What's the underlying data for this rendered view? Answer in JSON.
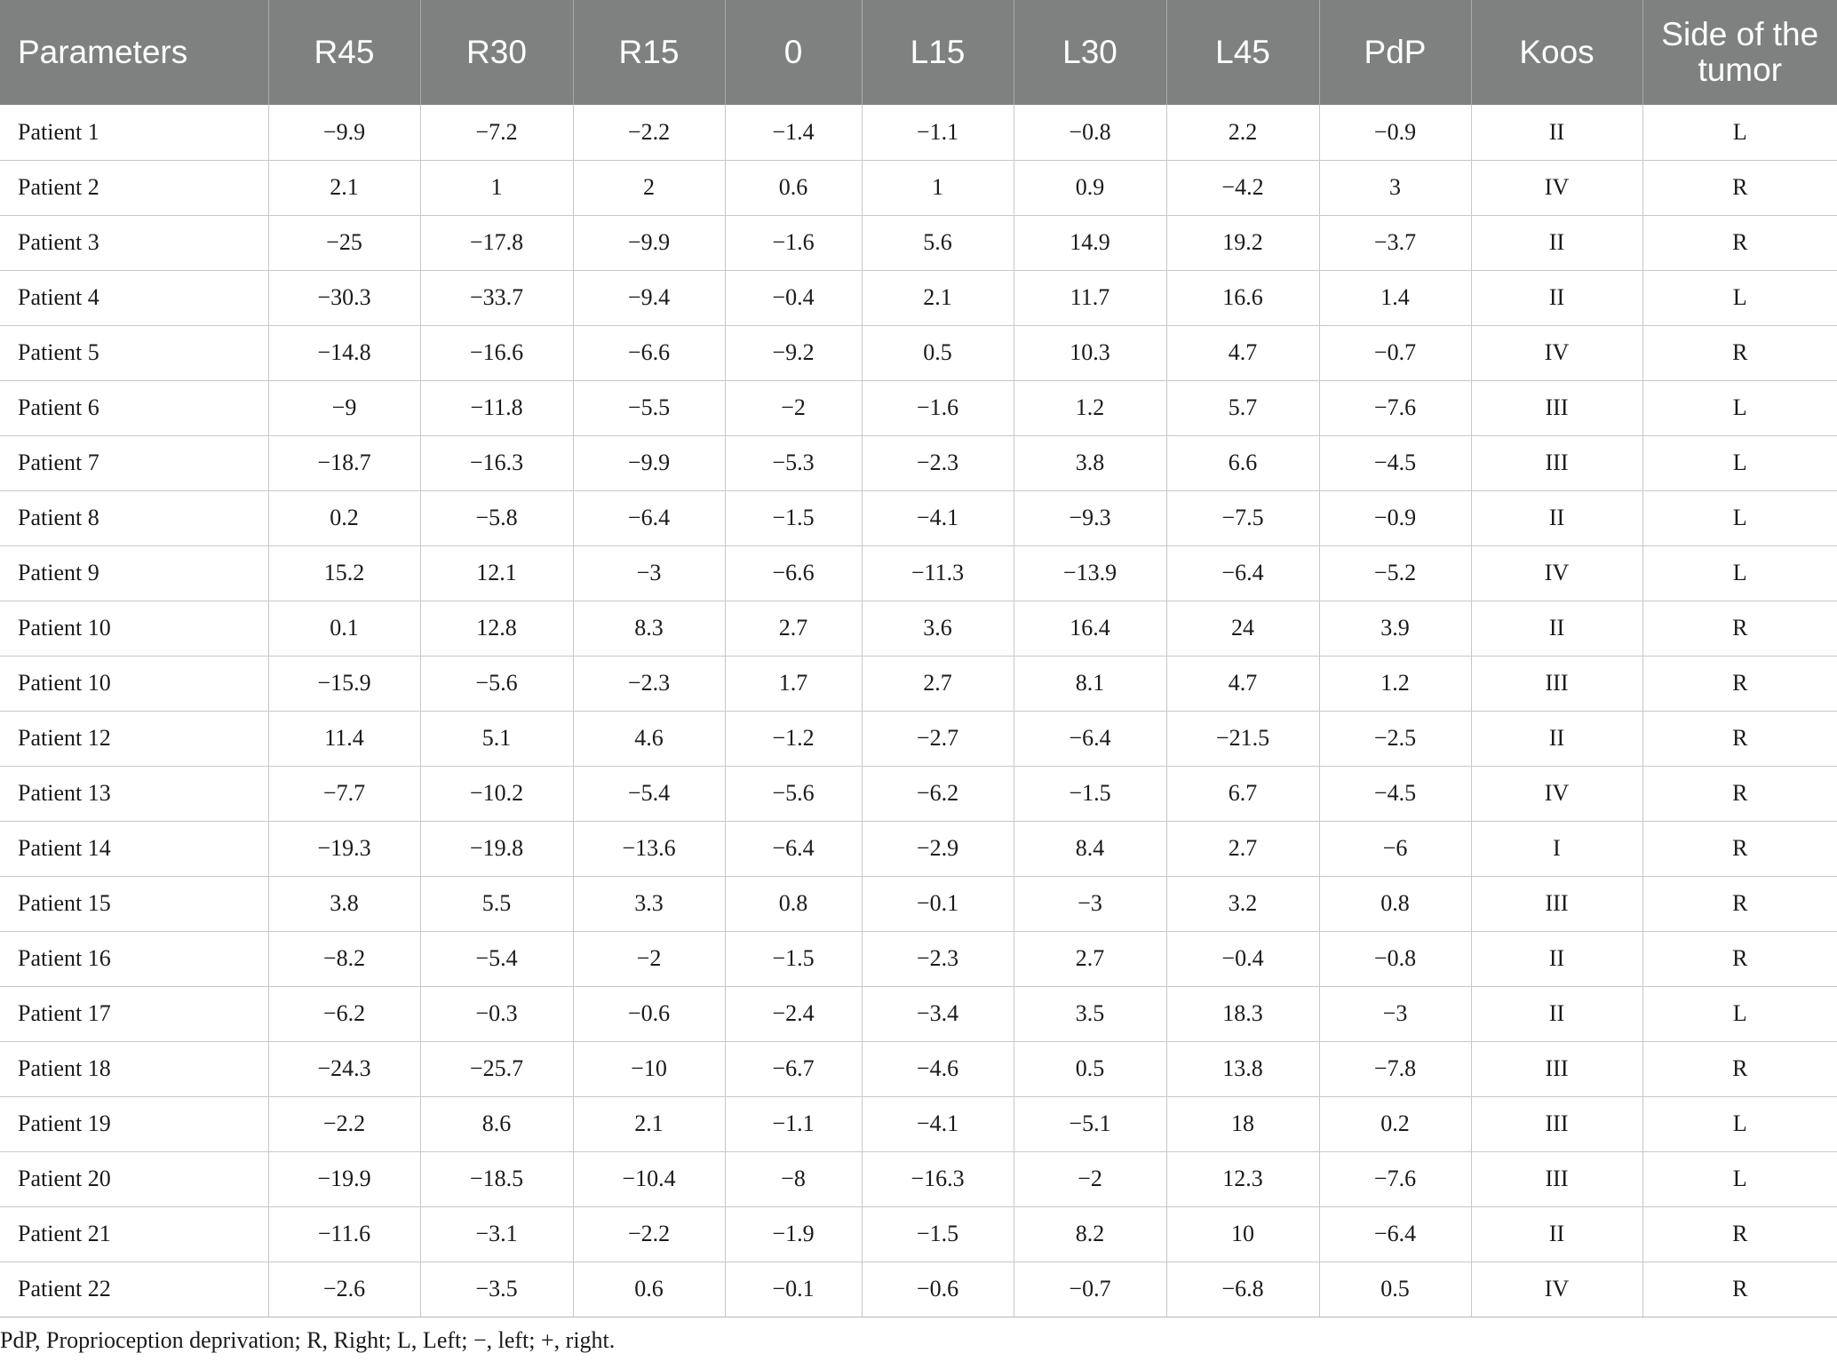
{
  "table": {
    "headers": [
      "Parameters",
      "R45",
      "R30",
      "R15",
      "0",
      "L15",
      "L30",
      "L45",
      "PdP",
      "Koos",
      "Side of the tumor"
    ],
    "rows": [
      [
        "Patient 1",
        "−9.9",
        "−7.2",
        "−2.2",
        "−1.4",
        "−1.1",
        "−0.8",
        "2.2",
        "−0.9",
        "II",
        "L"
      ],
      [
        "Patient 2",
        "2.1",
        "1",
        "2",
        "0.6",
        "1",
        "0.9",
        "−4.2",
        "3",
        "IV",
        "R"
      ],
      [
        "Patient 3",
        "−25",
        "−17.8",
        "−9.9",
        "−1.6",
        "5.6",
        "14.9",
        "19.2",
        "−3.7",
        "II",
        "R"
      ],
      [
        "Patient 4",
        "−30.3",
        "−33.7",
        "−9.4",
        "−0.4",
        "2.1",
        "11.7",
        "16.6",
        "1.4",
        "II",
        "L"
      ],
      [
        "Patient 5",
        "−14.8",
        "−16.6",
        "−6.6",
        "−9.2",
        "0.5",
        "10.3",
        "4.7",
        "−0.7",
        "IV",
        "R"
      ],
      [
        "Patient 6",
        "−9",
        "−11.8",
        "−5.5",
        "−2",
        "−1.6",
        "1.2",
        "5.7",
        "−7.6",
        "III",
        "L"
      ],
      [
        "Patient 7",
        "−18.7",
        "−16.3",
        "−9.9",
        "−5.3",
        "−2.3",
        "3.8",
        "6.6",
        "−4.5",
        "III",
        "L"
      ],
      [
        "Patient 8",
        "0.2",
        "−5.8",
        "−6.4",
        "−1.5",
        "−4.1",
        "−9.3",
        "−7.5",
        "−0.9",
        "II",
        "L"
      ],
      [
        "Patient 9",
        "15.2",
        "12.1",
        "−3",
        "−6.6",
        "−11.3",
        "−13.9",
        "−6.4",
        "−5.2",
        "IV",
        "L"
      ],
      [
        "Patient 10",
        "0.1",
        "12.8",
        "8.3",
        "2.7",
        "3.6",
        "16.4",
        "24",
        "3.9",
        "II",
        "R"
      ],
      [
        "Patient 10",
        "−15.9",
        "−5.6",
        "−2.3",
        "1.7",
        "2.7",
        "8.1",
        "4.7",
        "1.2",
        "III",
        "R"
      ],
      [
        "Patient 12",
        "11.4",
        "5.1",
        "4.6",
        "−1.2",
        "−2.7",
        "−6.4",
        "−21.5",
        "−2.5",
        "II",
        "R"
      ],
      [
        "Patient 13",
        "−7.7",
        "−10.2",
        "−5.4",
        "−5.6",
        "−6.2",
        "−1.5",
        "6.7",
        "−4.5",
        "IV",
        "R"
      ],
      [
        "Patient 14",
        "−19.3",
        "−19.8",
        "−13.6",
        "−6.4",
        "−2.9",
        "8.4",
        "2.7",
        "−6",
        "I",
        "R"
      ],
      [
        "Patient 15",
        "3.8",
        "5.5",
        "3.3",
        "0.8",
        "−0.1",
        "−3",
        "3.2",
        "0.8",
        "III",
        "R"
      ],
      [
        "Patient 16",
        "−8.2",
        "−5.4",
        "−2",
        "−1.5",
        "−2.3",
        "2.7",
        "−0.4",
        "−0.8",
        "II",
        "R"
      ],
      [
        "Patient 17",
        "−6.2",
        "−0.3",
        "−0.6",
        "−2.4",
        "−3.4",
        "3.5",
        "18.3",
        "−3",
        "II",
        "L"
      ],
      [
        "Patient 18",
        "−24.3",
        "−25.7",
        "−10",
        "−6.7",
        "−4.6",
        "0.5",
        "13.8",
        "−7.8",
        "III",
        "R"
      ],
      [
        "Patient 19",
        "−2.2",
        "8.6",
        "2.1",
        "−1.1",
        "−4.1",
        "−5.1",
        "18",
        "0.2",
        "III",
        "L"
      ],
      [
        "Patient 20",
        "−19.9",
        "−18.5",
        "−10.4",
        "−8",
        "−16.3",
        "−2",
        "12.3",
        "−7.6",
        "III",
        "L"
      ],
      [
        "Patient 21",
        "−11.6",
        "−3.1",
        "−2.2",
        "−1.9",
        "−1.5",
        "8.2",
        "10",
        "−6.4",
        "II",
        "R"
      ],
      [
        "Patient 22",
        "−2.6",
        "−3.5",
        "0.6",
        "−0.1",
        "−0.6",
        "−0.7",
        "−6.8",
        "0.5",
        "IV",
        "R"
      ]
    ],
    "footnote": "PdP, Proprioception deprivation; R, Right; L, Left; −, left; +, right."
  },
  "colors": {
    "header_bg": "#7f8180",
    "header_text": "#ffffff",
    "grid": "#c8c8c8"
  }
}
